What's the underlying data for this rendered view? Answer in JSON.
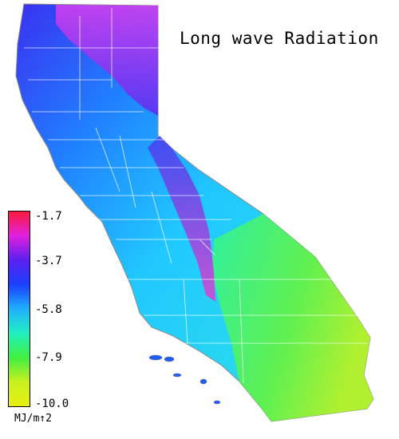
{
  "map": {
    "title": "Long wave Radiation",
    "region": "California"
  },
  "legend": {
    "unit": "MJ/m↑2",
    "ticks": [
      "-1.7",
      "-3.7",
      "-5.8",
      "-7.9",
      "-10.0"
    ],
    "tick_values": [
      -1.7,
      -3.7,
      -5.8,
      -7.9,
      -10.0
    ],
    "range": [
      -10.0,
      -1.7
    ],
    "colors": [
      "#ff1a3c",
      "#e020e0",
      "#5a20f0",
      "#1a40ff",
      "#20b0ff",
      "#20f0c0",
      "#40f040",
      "#c8f020",
      "#e8f010"
    ]
  },
  "colors": {
    "border": "#ffffff",
    "coast": "#8a8a8a",
    "high": "#ff1a3c",
    "north": "#d030e8",
    "mid": "#28c8ff",
    "low": "#e0f020"
  }
}
